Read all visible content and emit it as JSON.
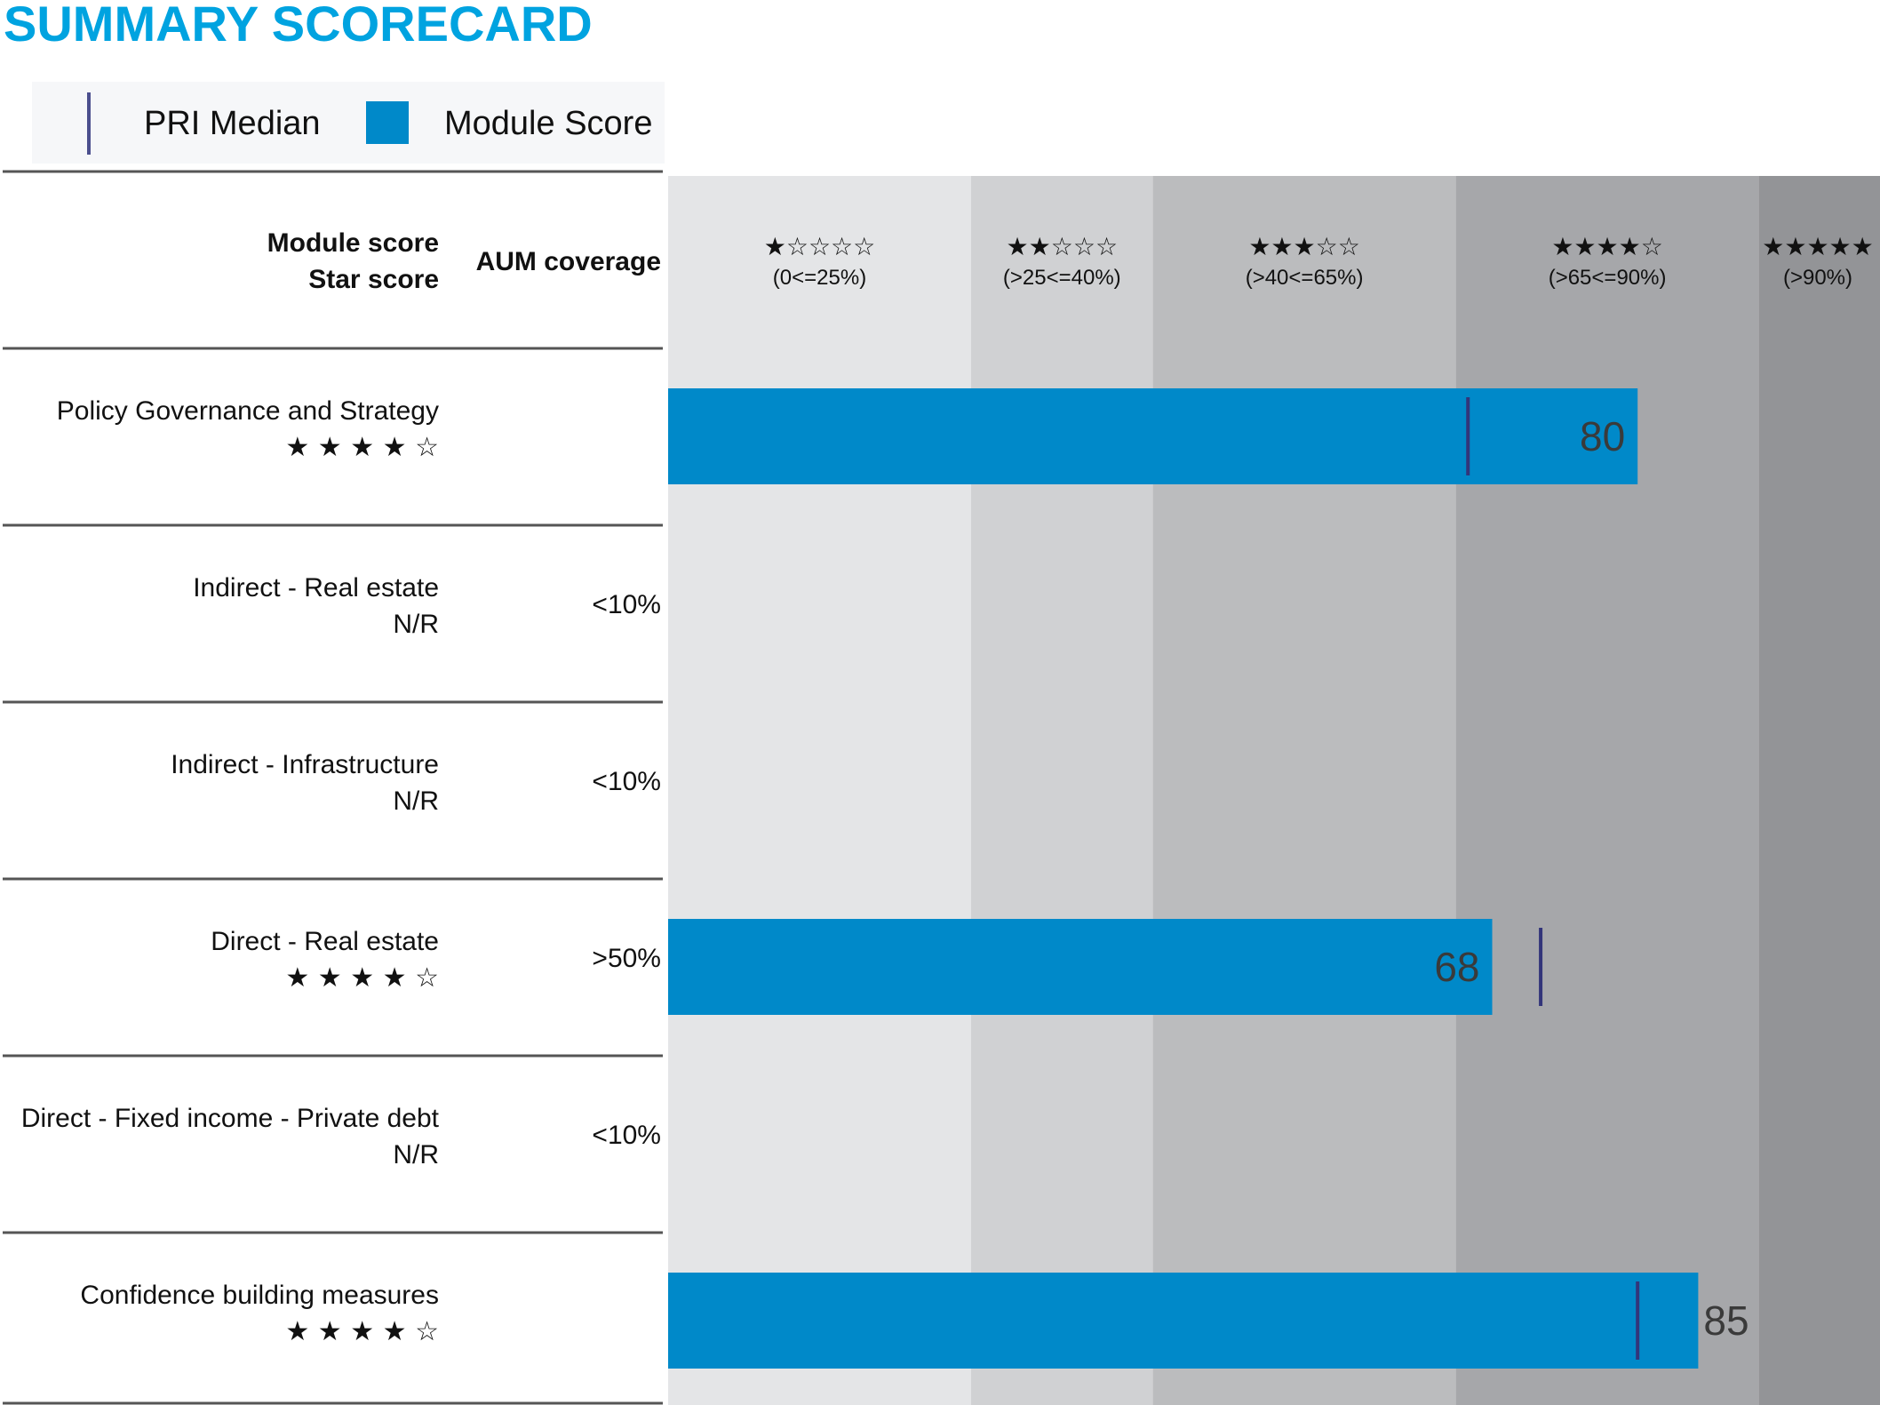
{
  "page": {
    "title": "SUMMARY SCORECARD"
  },
  "legend": {
    "median_label": "PRI Median",
    "score_label": "Module Score"
  },
  "header": {
    "module_score": "Module score",
    "star_score": "Star score",
    "aum_coverage": "AUM coverage"
  },
  "colors": {
    "title": "#00a3e0",
    "bar": "#0089c9",
    "median": "#33357a",
    "band_1": "#e4e5e7",
    "band_2": "#d0d1d3",
    "band_3": "#bbbcbe",
    "band_4": "#a6a7aa",
    "band_5": "#939497"
  },
  "chart_data": {
    "type": "bar",
    "orientation": "horizontal",
    "xlim": [
      0,
      100
    ],
    "bands": [
      {
        "from": 0,
        "to": 25,
        "stars": "★☆☆☆☆",
        "label": "(0<=25%)"
      },
      {
        "from": 25,
        "to": 40,
        "stars": "★★☆☆☆",
        "label": "(>25<=40%)"
      },
      {
        "from": 40,
        "to": 65,
        "stars": "★★★☆☆",
        "label": "(>40<=65%)"
      },
      {
        "from": 65,
        "to": 90,
        "stars": "★★★★☆",
        "label": "(>65<=90%)"
      },
      {
        "from": 90,
        "to": 100,
        "stars": "★★★★★",
        "label": "(>90%)"
      }
    ],
    "categories": [
      "Policy Governance and Strategy",
      "Indirect - Real estate",
      "Indirect - Infrastructure",
      "Direct - Real estate",
      "Direct - Fixed income - Private debt",
      "Confidence building measures"
    ],
    "star_scores": [
      "★ ★ ★ ★ ☆",
      "N/R",
      "N/R",
      "★ ★ ★ ★ ☆",
      "N/R",
      "★ ★ ★ ★ ☆"
    ],
    "aum_coverage": [
      "",
      "<10%",
      "<10%",
      ">50%",
      "<10%",
      ""
    ],
    "series": [
      {
        "name": "Module Score",
        "values": [
          80,
          null,
          null,
          68,
          null,
          85
        ]
      },
      {
        "name": "PRI Median",
        "values": [
          66,
          null,
          null,
          72,
          null,
          80
        ]
      }
    ]
  }
}
